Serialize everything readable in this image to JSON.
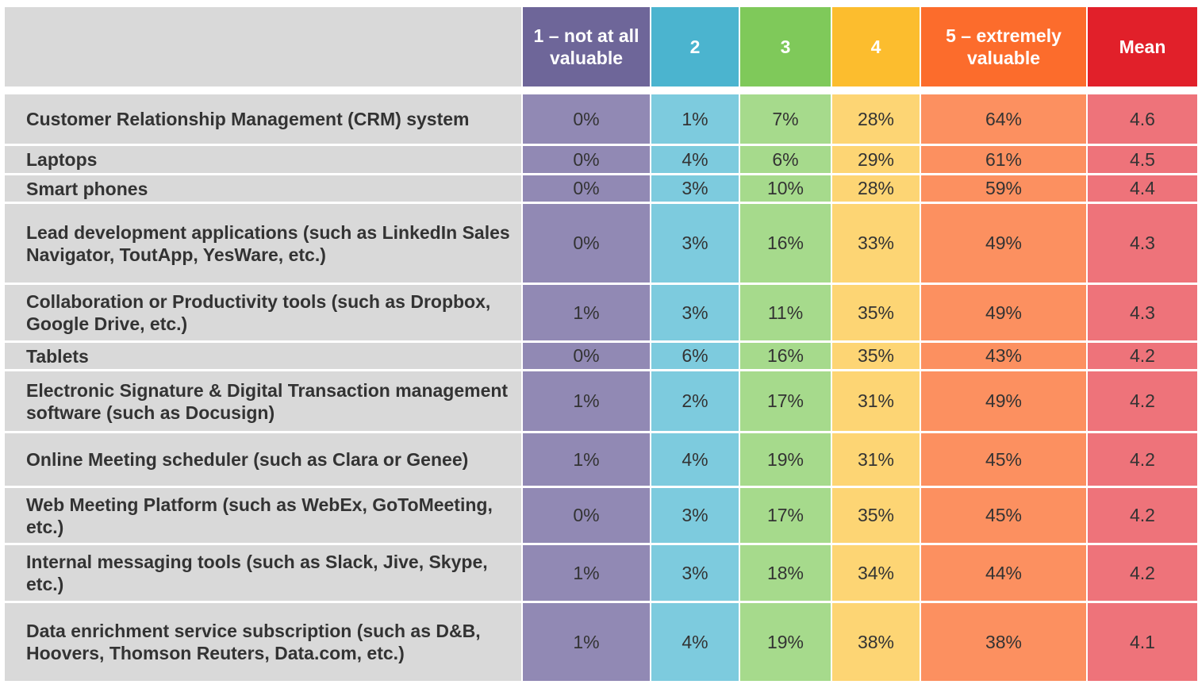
{
  "chart_data": {
    "type": "table",
    "columns": [
      "1 – not at all valuable",
      "2",
      "3",
      "4",
      "5 – extremely valuable",
      "Mean"
    ],
    "header_colors": [
      "#6e6699",
      "#4bb4cf",
      "#7fc95a",
      "#fcbd2e",
      "#fc6c2c",
      "#e1202a"
    ],
    "cell_colors": [
      "#9189b4",
      "#7dcbde",
      "#a6da8c",
      "#fdd574",
      "#fc9060",
      "#ee737a"
    ],
    "rows": [
      {
        "label": "Customer Relationship Management (CRM) system",
        "values": [
          "0%",
          "1%",
          "7%",
          "28%",
          "64%",
          "4.6"
        ]
      },
      {
        "label": "Laptops",
        "values": [
          "0%",
          "4%",
          "6%",
          "29%",
          "61%",
          "4.5"
        ]
      },
      {
        "label": "Smart phones",
        "values": [
          "0%",
          "3%",
          "10%",
          "28%",
          "59%",
          "4.4"
        ]
      },
      {
        "label": "Lead development applications (such as LinkedIn Sales Navigator, ToutApp, YesWare, etc.)",
        "values": [
          "0%",
          "3%",
          "16%",
          "33%",
          "49%",
          "4.3"
        ]
      },
      {
        "label": "Collaboration or Productivity tools (such as Dropbox, Google Drive, etc.)",
        "values": [
          "1%",
          "3%",
          "11%",
          "35%",
          "49%",
          "4.3"
        ]
      },
      {
        "label": "Tablets",
        "values": [
          "0%",
          "6%",
          "16%",
          "35%",
          "43%",
          "4.2"
        ]
      },
      {
        "label": "Electronic Signature & Digital Transaction management software (such as Docusign)",
        "values": [
          "1%",
          "2%",
          "17%",
          "31%",
          "49%",
          "4.2"
        ]
      },
      {
        "label": "Online Meeting scheduler (such as Clara or Genee)",
        "values": [
          "1%",
          "4%",
          "19%",
          "31%",
          "45%",
          "4.2"
        ]
      },
      {
        "label": "Web Meeting Platform (such as WebEx, GoToMeeting, etc.)",
        "values": [
          "0%",
          "3%",
          "17%",
          "35%",
          "45%",
          "4.2"
        ]
      },
      {
        "label": "Internal messaging tools (such as Slack, Jive, Skype, etc.)",
        "values": [
          "1%",
          "3%",
          "18%",
          "34%",
          "44%",
          "4.2"
        ]
      },
      {
        "label": "Data enrichment service subscription (such as D&B, Hoovers, Thomson Reuters, Data.com, etc.)",
        "values": [
          "1%",
          "4%",
          "19%",
          "38%",
          "38%",
          "4.1"
        ]
      }
    ]
  }
}
